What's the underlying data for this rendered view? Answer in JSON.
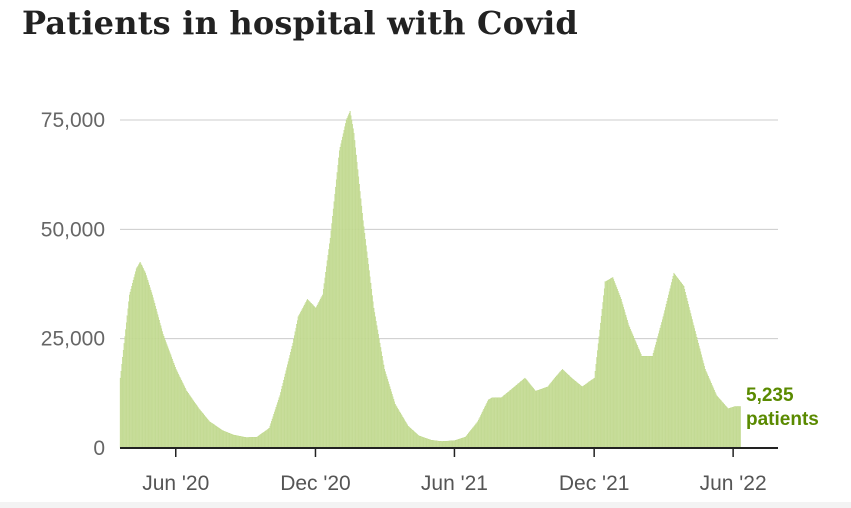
{
  "title": "Patients in hospital with Covid",
  "colors": {
    "bars": "#cfe2a6",
    "bar_stroke": "#b6d27e",
    "annotation": "#5a8a00",
    "grid": "#cccccc",
    "axis": "#222222"
  },
  "annotation": {
    "value": "5,235",
    "label": "patients"
  },
  "chart_data": {
    "type": "bar",
    "title": "Patients in hospital with Covid",
    "xlabel": "",
    "ylabel": "",
    "ylim": [
      0,
      75000
    ],
    "yticks": [
      0,
      25000,
      50000,
      75000
    ],
    "ytick_labels": [
      "0",
      "25,000",
      "50,000",
      "75,000"
    ],
    "xtick_labels": [
      "Jun '20",
      "Dec '20",
      "Jun '21",
      "Dec '21",
      "Jun '22"
    ],
    "xtick_dates": [
      "2020-06-01",
      "2020-12-01",
      "2021-06-01",
      "2021-12-01",
      "2022-06-01"
    ],
    "xlim": [
      "2020-03-20",
      "2022-06-10"
    ],
    "grid": true,
    "dates": [
      "2020-03-20",
      "2020-04-01",
      "2020-04-10",
      "2020-04-15",
      "2020-04-22",
      "2020-05-01",
      "2020-05-15",
      "2020-06-01",
      "2020-06-15",
      "2020-07-01",
      "2020-07-15",
      "2020-08-01",
      "2020-08-15",
      "2020-09-01",
      "2020-09-15",
      "2020-10-01",
      "2020-10-15",
      "2020-11-01",
      "2020-11-08",
      "2020-11-20",
      "2020-12-01",
      "2020-12-10",
      "2020-12-20",
      "2021-01-01",
      "2021-01-10",
      "2021-01-15",
      "2021-01-20",
      "2021-02-01",
      "2021-02-15",
      "2021-03-01",
      "2021-03-15",
      "2021-04-01",
      "2021-04-15",
      "2021-05-01",
      "2021-05-15",
      "2021-06-01",
      "2021-06-15",
      "2021-07-01",
      "2021-07-15",
      "2021-07-20",
      "2021-08-01",
      "2021-08-15",
      "2021-09-01",
      "2021-09-15",
      "2021-10-01",
      "2021-10-10",
      "2021-10-20",
      "2021-11-01",
      "2021-11-15",
      "2021-12-01",
      "2021-12-15",
      "2021-12-25",
      "2022-01-05",
      "2022-01-15",
      "2022-02-01",
      "2022-02-15",
      "2022-03-01",
      "2022-03-15",
      "2022-03-28",
      "2022-04-10",
      "2022-04-25",
      "2022-05-10",
      "2022-05-25",
      "2022-06-03",
      "2022-06-08"
    ],
    "values": [
      16000,
      35000,
      41000,
      42500,
      40000,
      35000,
      26000,
      18000,
      13000,
      9000,
      6000,
      4000,
      3000,
      2400,
      2500,
      4500,
      12000,
      24000,
      30000,
      34000,
      32000,
      35000,
      48000,
      68000,
      75000,
      77000,
      72000,
      52000,
      32000,
      18000,
      10000,
      5000,
      2800,
      1800,
      1500,
      1700,
      2500,
      6000,
      11000,
      11500,
      11500,
      13500,
      16000,
      13000,
      14000,
      16000,
      18000,
      16000,
      14000,
      16000,
      38000,
      39000,
      34000,
      28000,
      21000,
      21000,
      30000,
      40000,
      37000,
      28000,
      18000,
      12000,
      9000,
      9500,
      9500
    ],
    "series": [
      {
        "name": "",
        "values_key": "values"
      }
    ]
  }
}
